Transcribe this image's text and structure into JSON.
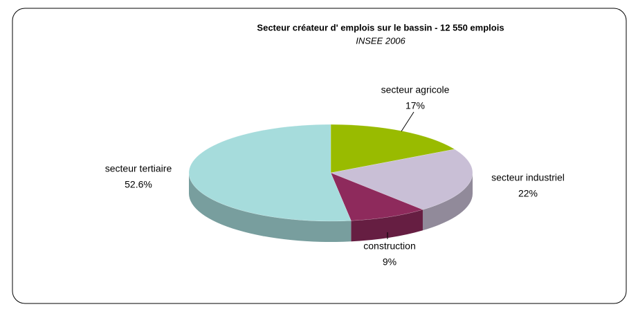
{
  "chart_data": {
    "type": "pie",
    "title": "Secteur créateur d' emplois sur le bassin - 12 550 emplois",
    "subtitle": "INSEE 2006",
    "categories": [
      "secteur agricole",
      "secteur industriel",
      "construction",
      "secteur tertiaire"
    ],
    "values": [
      17,
      22,
      9,
      52.6
    ],
    "value_labels": [
      "17%",
      "22%",
      "9%",
      "52.6%"
    ],
    "colors": [
      "#99bb00",
      "#c9bfd6",
      "#8e2a5c",
      "#a6dcdc"
    ]
  }
}
